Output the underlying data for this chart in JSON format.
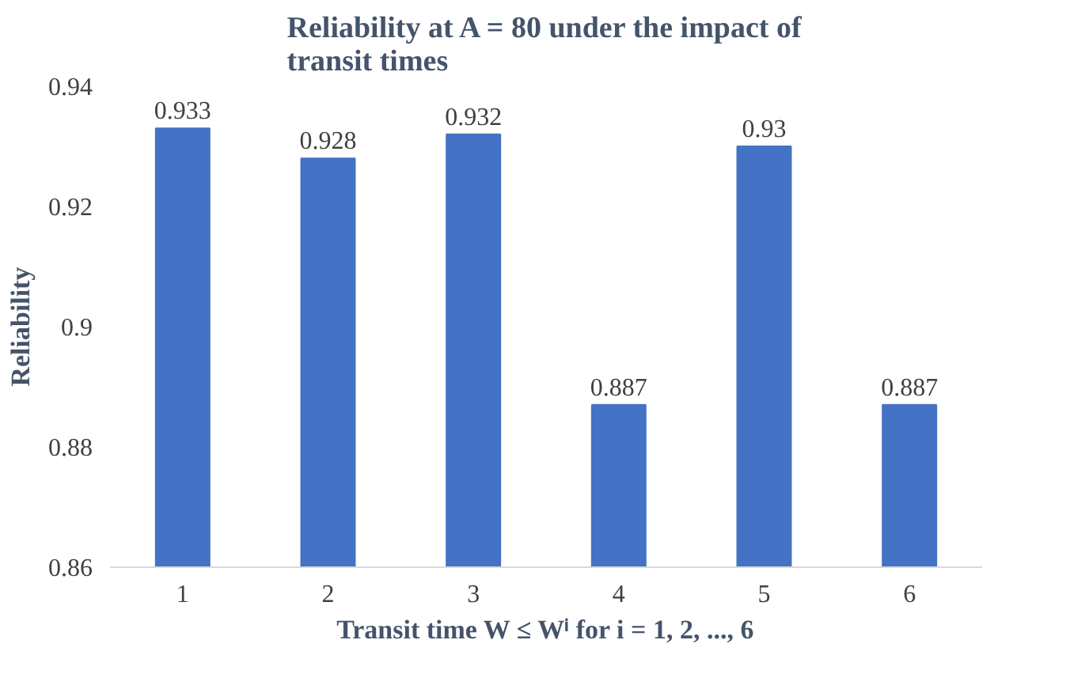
{
  "chart_data": {
    "type": "bar",
    "title": "Reliability at A = 80 under the impact of transit times",
    "xlabel": "Transit time W ≤ Wⁱ for i = 1, 2, ..., 6",
    "ylabel": "Reliability",
    "categories": [
      "1",
      "2",
      "3",
      "4",
      "5",
      "6"
    ],
    "values": [
      0.933,
      0.928,
      0.932,
      0.887,
      0.93,
      0.887
    ],
    "color": "#4472c4",
    "ylim": [
      0.86,
      0.94
    ],
    "yticks": [
      0.86,
      0.88,
      0.9,
      0.92,
      0.94
    ],
    "data_labels": true,
    "grid": false
  }
}
